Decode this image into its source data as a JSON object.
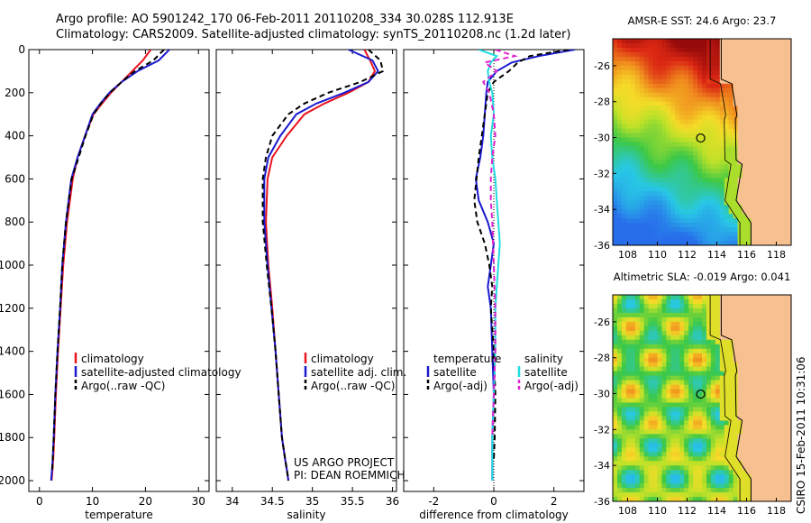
{
  "header": {
    "line1": "Argo profile: AO 5901242_170 06-Feb-2011 20110208_334 30.028S 112.913E",
    "line2": "Climatology: CARS2009. Satellite-adjusted climatology: synTS_20110208.nc (1.2d later)"
  },
  "side_label": "CSIRO 15-Feb-2011 10:31:06",
  "colors": {
    "climatology": "#e8141e",
    "satellite": "#1a1acf",
    "argo": "#000000",
    "sal_sat": "#22dde0",
    "sal_argo": "#e020d0",
    "land": "#f7c090"
  },
  "chart_data": [
    {
      "type": "line",
      "title": "",
      "xlabel": "temperature",
      "ylabel": "",
      "xlim": [
        -2,
        32
      ],
      "ylim": [
        2050,
        0
      ],
      "xticks": [
        "0",
        "10",
        "20",
        "30"
      ],
      "yticks": [
        "0",
        "200",
        "400",
        "600",
        "800",
        "1000",
        "1200",
        "1400",
        "1600",
        "1800",
        "2000"
      ],
      "legend": [
        "climatology",
        "satellite-adjusted climatology",
        "Argo(..raw -QC)"
      ],
      "series": [
        {
          "name": "climatology",
          "style": "solid",
          "color": "#e8141e",
          "x": [
            21,
            19.5,
            17.5,
            15.5,
            13.5,
            11.8,
            10.2,
            8.6,
            7.2,
            6.3,
            5.2,
            4.5,
            4,
            3.5,
            3.1,
            2.8,
            2.6,
            2.4,
            2.3
          ],
          "y": [
            0,
            50,
            100,
            150,
            200,
            250,
            300,
            400,
            500,
            600,
            800,
            1000,
            1200,
            1400,
            1600,
            1800,
            1900,
            1970,
            2000
          ]
        },
        {
          "name": "satellite-adjusted climatology",
          "style": "solid",
          "color": "#1a1acf",
          "x": [
            24.5,
            22.5,
            18.5,
            15.5,
            13.2,
            11.5,
            10,
            8.6,
            7.2,
            6,
            5,
            4.3,
            3.9,
            3.4,
            3,
            2.7,
            2.5,
            2.3,
            2.2
          ],
          "y": [
            0,
            50,
            100,
            150,
            200,
            250,
            300,
            400,
            500,
            600,
            800,
            1000,
            1200,
            1400,
            1600,
            1800,
            1900,
            1970,
            2000
          ]
        },
        {
          "name": "Argo(..raw -QC)",
          "style": "dashed",
          "color": "#000000",
          "x": [
            23.5,
            21.5,
            18,
            15.5,
            13.3,
            11.6,
            10.2,
            8.7,
            7.4,
            6.1,
            5,
            4.3,
            3.9,
            3.4,
            3,
            2.7,
            2.5,
            2.4
          ],
          "y": [
            0,
            50,
            100,
            150,
            200,
            250,
            300,
            400,
            500,
            600,
            800,
            1000,
            1200,
            1400,
            1600,
            1800,
            1900,
            1960
          ]
        }
      ]
    },
    {
      "type": "line",
      "title": "",
      "xlabel": "salinity",
      "ylabel": "",
      "xlim": [
        33.8,
        36.05
      ],
      "ylim": [
        2050,
        0
      ],
      "xticks": [
        "34",
        "34.5",
        "35",
        "35.5",
        "36"
      ],
      "legend": [
        "climatology",
        "satellite adj. clim.",
        "Argo(..raw -QC)"
      ],
      "annotations": [
        "US ARGO PROJECT",
        "PI: DEAN ROEMMICH"
      ],
      "series": [
        {
          "name": "climatology",
          "style": "solid",
          "color": "#e8141e",
          "x": [
            35.65,
            35.72,
            35.78,
            35.7,
            35.45,
            35.15,
            34.9,
            34.68,
            34.5,
            34.44,
            34.42,
            34.45,
            34.5,
            34.54,
            34.58,
            34.62,
            34.66,
            34.69,
            34.7
          ],
          "y": [
            0,
            50,
            100,
            150,
            200,
            250,
            300,
            400,
            500,
            600,
            800,
            1000,
            1200,
            1400,
            1600,
            1800,
            1900,
            1970,
            2000
          ]
        },
        {
          "name": "satellite adj. clim.",
          "style": "solid",
          "color": "#1a1acf",
          "x": [
            35.45,
            35.75,
            35.82,
            35.7,
            35.4,
            35.05,
            34.8,
            34.6,
            34.45,
            34.4,
            34.4,
            34.44,
            34.49,
            34.54,
            34.58,
            34.62,
            34.66,
            34.69,
            34.7
          ],
          "y": [
            0,
            50,
            100,
            150,
            200,
            250,
            300,
            400,
            500,
            600,
            800,
            1000,
            1200,
            1400,
            1600,
            1800,
            1900,
            1970,
            2000
          ]
        },
        {
          "name": "Argo(..raw -QC)",
          "style": "dashed",
          "color": "#000000",
          "x": [
            35.7,
            35.85,
            35.88,
            35.6,
            35.2,
            34.9,
            34.7,
            34.5,
            34.42,
            34.38,
            34.38,
            34.43,
            34.49,
            34.54,
            34.58,
            34.62,
            34.66,
            34.69,
            34.7
          ],
          "y": [
            0,
            50,
            100,
            150,
            200,
            250,
            300,
            400,
            500,
            600,
            800,
            1000,
            1200,
            1400,
            1600,
            1800,
            1900,
            1970,
            2000
          ]
        }
      ]
    },
    {
      "type": "line",
      "title": "",
      "xlabel": "difference from climatology",
      "ylabel": "",
      "xlim": [
        -3,
        3
      ],
      "ylim": [
        2050,
        0
      ],
      "xticks": [
        "-2",
        "0",
        "2"
      ],
      "legend": [
        "temperature",
        "satellite",
        "Argo(-adj)",
        "salinity",
        "satellite",
        "Argo(-adj)"
      ],
      "series": [
        {
          "name": "temperature satellite",
          "style": "solid",
          "color": "#1a1acf",
          "x": [
            2.7,
            1.5,
            0.6,
            0.1,
            -0.2,
            -0.25,
            -0.3,
            -0.35,
            -0.45,
            -0.6,
            -0.5,
            -0.2,
            0,
            -0.1,
            -0.2,
            -0.1,
            -0.05,
            0,
            -0.05,
            -0.05,
            -0.05
          ],
          "y": [
            0,
            30,
            60,
            100,
            150,
            200,
            300,
            400,
            500,
            600,
            700,
            800,
            900,
            1000,
            1100,
            1200,
            1400,
            1600,
            1800,
            1900,
            2000
          ]
        },
        {
          "name": "temperature Argo(-adj)",
          "style": "dashed",
          "color": "#000000",
          "x": [
            2.5,
            1.2,
            0.8,
            0.5,
            0,
            -0.2,
            -0.3,
            -0.4,
            -0.5,
            -0.65,
            -0.55,
            -0.3,
            -0.15,
            -0.05,
            -0.1,
            0,
            0.05,
            0.03,
            0
          ],
          "y": [
            0,
            30,
            60,
            100,
            150,
            200,
            300,
            400,
            500,
            700,
            800,
            900,
            1000,
            1100,
            1200,
            1400,
            1600,
            1800,
            1900
          ]
        },
        {
          "name": "salinity satellite",
          "style": "solid",
          "color": "#22dde0",
          "x": [
            -0.5,
            0.1,
            -0.1,
            -0.2,
            -0.15,
            -0.05,
            0,
            -0.1,
            -0.05,
            0.05,
            0.1,
            0.15,
            0.2,
            0.15,
            0.1,
            0.05,
            0.05,
            0,
            -0.05,
            -0.05,
            -0.05
          ],
          "y": [
            0,
            30,
            60,
            100,
            150,
            200,
            300,
            400,
            500,
            600,
            700,
            800,
            900,
            1000,
            1100,
            1200,
            1400,
            1600,
            1800,
            1900,
            2000
          ]
        },
        {
          "name": "salinity Argo(-adj)",
          "style": "dashed",
          "color": "#e020d0",
          "x": [
            0.05,
            0.7,
            -0.3,
            0.1,
            -0.35,
            -0.15,
            0,
            0.05,
            -0.05,
            -0.1,
            -0.1,
            -0.05,
            0,
            0.05,
            0.05,
            0,
            -0.05
          ],
          "y": [
            0,
            30,
            60,
            100,
            150,
            200,
            300,
            400,
            500,
            600,
            700,
            800,
            1000,
            1200,
            1400,
            1600,
            1800
          ]
        }
      ]
    },
    {
      "type": "heatmap",
      "title": "AMSR-E SST: 24.6 Argo: 23.7",
      "xlim": [
        107,
        119
      ],
      "ylim": [
        -36,
        -24.5
      ],
      "xticks": [
        "108",
        "110",
        "112",
        "114",
        "116",
        "118"
      ],
      "yticks": [
        "-26",
        "-28",
        "-30",
        "-32",
        "-34",
        "-36"
      ],
      "marker": {
        "lon": 112.913,
        "lat": -30.028
      }
    },
    {
      "type": "heatmap",
      "title": "Altimetric SLA: -0.019 Argo: 0.041",
      "xlim": [
        107,
        119
      ],
      "ylim": [
        -36,
        -24.5
      ],
      "xticks": [
        "108",
        "110",
        "112",
        "114",
        "116",
        "118"
      ],
      "yticks": [
        "-26",
        "-28",
        "-30",
        "-32",
        "-34",
        "-36"
      ],
      "marker": {
        "lon": 112.913,
        "lat": -30.028
      }
    }
  ]
}
